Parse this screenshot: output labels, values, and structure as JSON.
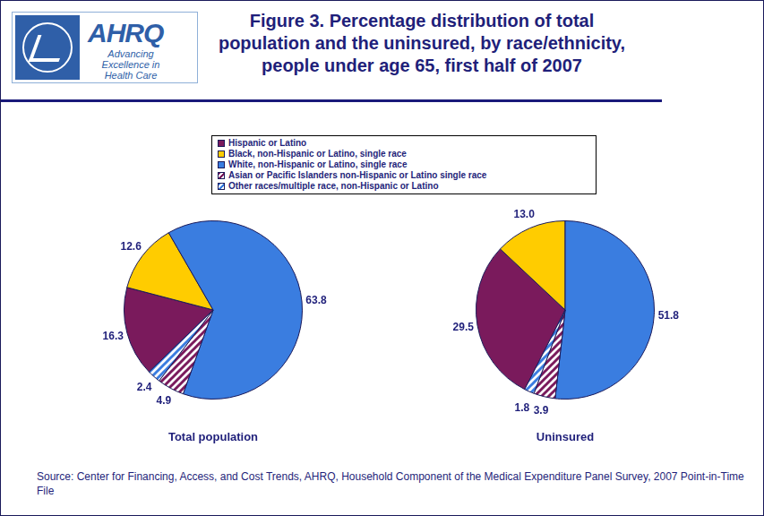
{
  "title": [
    "Figure 3. Percentage distribution of total",
    "population and the uninsured, by race/ethnicity,",
    "people under age 65, first half of 2007"
  ],
  "logo": {
    "name": "AHRQ",
    "tagline": "Advancing Excellence in Health Care"
  },
  "legend": "top",
  "source": "Source: Center for Financing, Access, and Cost Trends, AHRQ, Household Component of the Medical Expenditure Panel Survey, 2007 Point-in-Time File",
  "chart_data": [
    {
      "type": "pie",
      "title": "Total population",
      "categories": [
        "Hispanic or Latino",
        "Black, non-Hispanic or Latino, single race",
        "White, non-Hispanic or Latino, single race",
        "Asian or Pacific Islanders non-Hispanic or Latino single race",
        "Other races/multiple race, non-Hispanic or Latino"
      ],
      "values": [
        16.3,
        12.6,
        63.8,
        4.9,
        2.4
      ],
      "colors": [
        "#7a1a5c",
        "#ffcc00",
        "#3a7de0",
        "#7a1a5c",
        "#3a7de0"
      ],
      "data_labels": true
    },
    {
      "type": "pie",
      "title": "Uninsured",
      "categories": [
        "Hispanic or Latino",
        "Black, non-Hispanic or Latino, single race",
        "White, non-Hispanic or Latino, single race",
        "Asian or Pacific Islanders non-Hispanic or Latino single race",
        "Other races/multiple race, non-Hispanic or Latino"
      ],
      "values": [
        29.5,
        13.0,
        51.8,
        3.9,
        1.8
      ],
      "value_labels": [
        "29.5",
        "13.0",
        "51.8",
        "3.9",
        "1.8"
      ],
      "colors": [
        "#7a1a5c",
        "#ffcc00",
        "#3a7de0",
        "#7a1a5c",
        "#3a7de0"
      ],
      "data_labels": true
    }
  ]
}
